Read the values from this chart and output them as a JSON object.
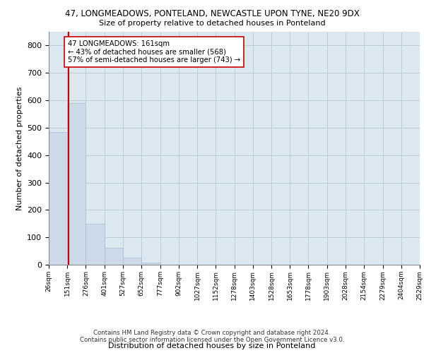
{
  "title": "47, LONGMEADOWS, PONTELAND, NEWCASTLE UPON TYNE, NE20 9DX",
  "subtitle": "Size of property relative to detached houses in Ponteland",
  "xlabel": "Distribution of detached houses by size in Ponteland",
  "ylabel": "Number of detached properties",
  "bar_color": "#ccd9e8",
  "bar_edge_color": "#aabbd0",
  "grid_color": "#b8c8d8",
  "background_color": "#dce8f0",
  "bin_edges": [
    26,
    151,
    276,
    401,
    527,
    652,
    777,
    902,
    1027,
    1152,
    1278,
    1403,
    1528,
    1653,
    1778,
    1903,
    2028,
    2154,
    2279,
    2404,
    2529
  ],
  "bar_heights": [
    483,
    591,
    150,
    62,
    25,
    8,
    0,
    0,
    0,
    0,
    0,
    0,
    0,
    0,
    0,
    0,
    0,
    0,
    0,
    0
  ],
  "property_size": 161,
  "annotation_text": "47 LONGMEADOWS: 161sqm\n← 43% of detached houses are smaller (568)\n57% of semi-detached houses are larger (743) →",
  "vline_x": 161,
  "vline_color": "#cc0000",
  "annotation_box_color": "#ffffff",
  "annotation_box_edge": "#cc0000",
  "footnote1": "Contains HM Land Registry data © Crown copyright and database right 2024.",
  "footnote2": "Contains public sector information licensed under the Open Government Licence v3.0.",
  "ylim": [
    0,
    850
  ],
  "yticks": [
    0,
    100,
    200,
    300,
    400,
    500,
    600,
    700,
    800
  ]
}
